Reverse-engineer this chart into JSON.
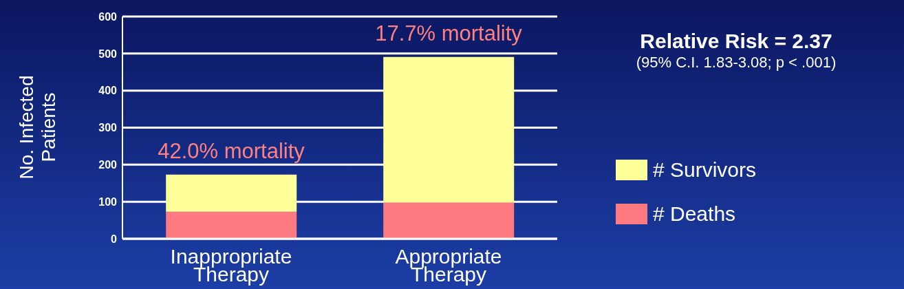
{
  "chart_data": {
    "type": "bar",
    "stacked": true,
    "ylabel": "No. Infected Patients",
    "categories": [
      "Inappropriate Therapy",
      "Appropriate Therapy"
    ],
    "series": [
      {
        "name": "# Deaths",
        "color": "#ff7a80",
        "values": [
          73,
          98
        ]
      },
      {
        "name": "# Survivors",
        "color": "#ffff99",
        "values": [
          100,
          393
        ]
      }
    ],
    "ylim": [
      0,
      600
    ],
    "yticks": [
      0,
      100,
      200,
      300,
      400,
      500,
      600
    ],
    "grid": "y",
    "legend": "right",
    "annotations": [
      "42.0% mortality",
      "17.7% mortality",
      "Relative Risk = 2.37",
      "(95% C.I. 1.83-3.08; p < .001)"
    ]
  }
}
